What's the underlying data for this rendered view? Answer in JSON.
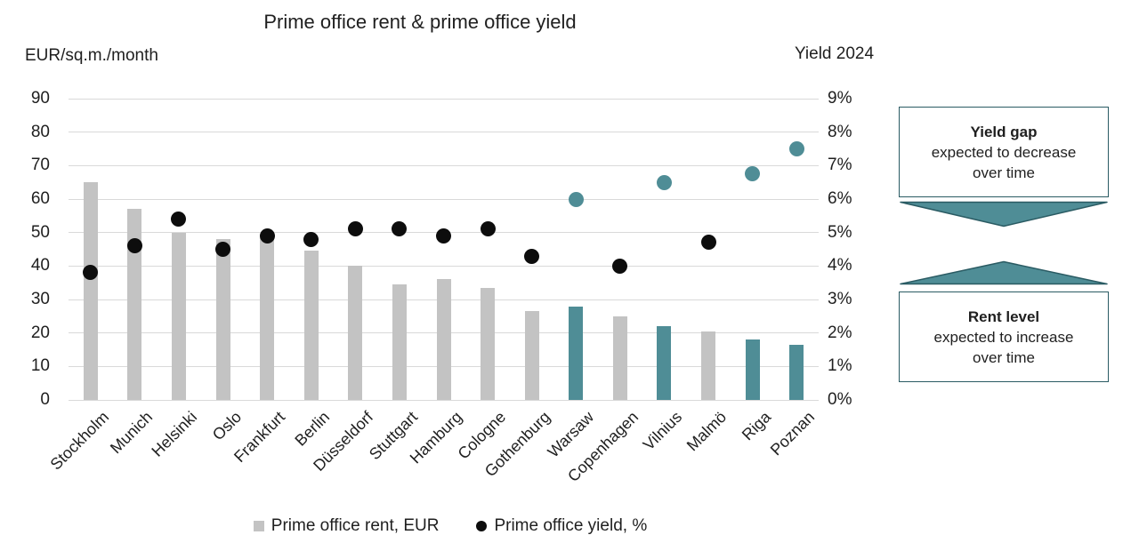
{
  "title": "Prime office rent & prime office yield",
  "left_axis_unit": "EUR/sq.m./month",
  "right_axis_unit": "Yield 2024",
  "legend": {
    "rent_label": "Prime office rent, EUR",
    "yield_label": "Prime office yield, %"
  },
  "annotations": {
    "yield_gap": {
      "title": "Yield gap",
      "line2": "expected to decrease",
      "line3": "over time"
    },
    "rent_level": {
      "title": "Rent level",
      "line2": "expected to increase",
      "line3": "over time"
    }
  },
  "colors": {
    "bar_gray": "#c3c3c3",
    "highlight_teal": "#4f8d96",
    "dot_black": "#0d0d0d",
    "gridline": "#d9d9d9",
    "annotation_border": "#2a5b63"
  },
  "chart_data": {
    "type": "bar",
    "note": "combo chart: bars = rent on left axis, scatter dots = yield on right axis",
    "categories": [
      "Stockholm",
      "Munich",
      "Helsinki",
      "Oslo",
      "Frankfurt",
      "Berlin",
      "Düsseldorf",
      "Stuttgart",
      "Hamburg",
      "Cologne",
      "Gothenburg",
      "Warsaw",
      "Copenhagen",
      "Vilnius",
      "Malmö",
      "Riga",
      "Poznan"
    ],
    "series": [
      {
        "name": "Prime office rent, EUR",
        "type": "bar",
        "axis": "left",
        "values": [
          65,
          57,
          50,
          48,
          49.5,
          44.5,
          40,
          34.5,
          36,
          33.5,
          26.5,
          28,
          25,
          22,
          20.5,
          18,
          16.5
        ]
      },
      {
        "name": "Prime office yield, %",
        "type": "scatter",
        "axis": "right",
        "values": [
          3.8,
          4.6,
          5.4,
          4.5,
          4.9,
          4.8,
          5.1,
          5.1,
          4.9,
          5.1,
          4.3,
          6.0,
          4.0,
          6.5,
          4.7,
          6.75,
          7.5
        ]
      }
    ],
    "highlight_categories": [
      "Warsaw",
      "Vilnius",
      "Riga",
      "Poznan"
    ],
    "left_axis": {
      "label": "EUR/sq.m./month",
      "min": 0,
      "max": 90,
      "step": 10,
      "ticks": [
        "0",
        "10",
        "20",
        "30",
        "40",
        "50",
        "60",
        "70",
        "80",
        "90"
      ]
    },
    "right_axis": {
      "label": "Yield 2024",
      "min": 0,
      "max": 9,
      "step": 1,
      "ticks": [
        "0%",
        "1%",
        "2%",
        "3%",
        "4%",
        "5%",
        "6%",
        "7%",
        "8%",
        "9%"
      ]
    },
    "grid": true,
    "legend_position": "bottom"
  }
}
